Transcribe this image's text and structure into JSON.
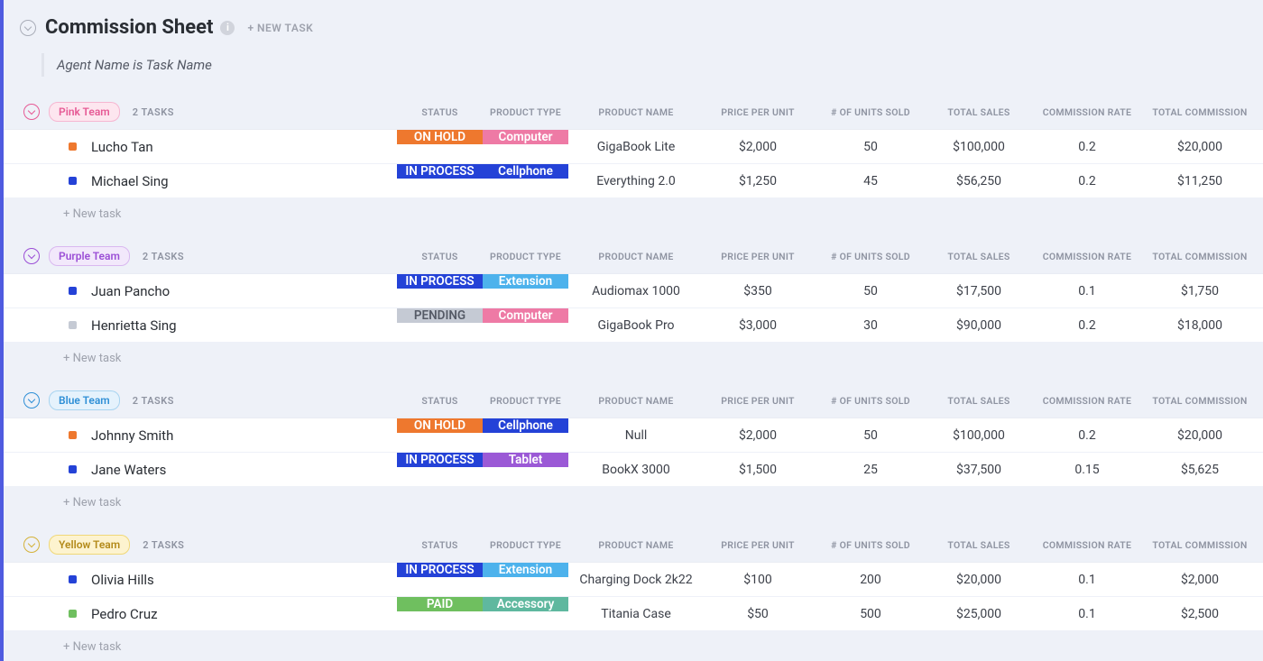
{
  "header": {
    "title": "Commission Sheet",
    "new_task_label": "+ NEW TASK",
    "subtitle": "Agent Name is Task Name"
  },
  "columns": {
    "status": "STATUS",
    "product_type": "PRODUCT TYPE",
    "product_name": "PRODUCT NAME",
    "price_per_unit": "PRICE PER UNIT",
    "units_sold": "# OF UNITS SOLD",
    "total_sales": "TOTAL SALES",
    "commission_rate": "COMMISSION RATE",
    "total_commission": "TOTAL COMMISSION"
  },
  "labels": {
    "new_task": "+ New task"
  },
  "status_styles": {
    "ON HOLD": {
      "bg": "#ee782e"
    },
    "IN PROCESS": {
      "bg": "#2442d7"
    },
    "PENDING": {
      "bg": "#c5cad4",
      "fg": "#555a66"
    },
    "PAID": {
      "bg": "#6fbf5f"
    }
  },
  "ptype_styles": {
    "Computer": {
      "bg": "#ee7aa5"
    },
    "Cellphone": {
      "bg": "#2442d7"
    },
    "Extension": {
      "bg": "#4db2ec"
    },
    "Tablet": {
      "bg": "#9b59d6"
    },
    "Accessory": {
      "bg": "#5fb89f"
    }
  },
  "bullet_colors": {
    "orange": "#ee782e",
    "blue": "#2442d7",
    "grey": "#c5cad4",
    "green": "#6fbf5f"
  },
  "groups": [
    {
      "name": "Pink Team",
      "task_count": "2 TASKS",
      "pill": {
        "bg": "#fde6ef",
        "fg": "#e65a95",
        "border": "#f6b6d1"
      },
      "chev_color": "#e65a95",
      "rows": [
        {
          "bullet": "orange",
          "agent": "Lucho Tan",
          "status": "ON HOLD",
          "ptype": "Computer",
          "pname": "GigaBook Lite",
          "ppu": "$2,000",
          "units": "50",
          "tsales": "$100,000",
          "crate": "0.2",
          "tcomm": "$20,000"
        },
        {
          "bullet": "blue",
          "agent": "Michael Sing",
          "status": "IN PROCESS",
          "ptype": "Cellphone",
          "pname": "Everything 2.0",
          "ppu": "$1,250",
          "units": "45",
          "tsales": "$56,250",
          "crate": "0.2",
          "tcomm": "$11,250"
        }
      ]
    },
    {
      "name": "Purple Team",
      "task_count": "2 TASKS",
      "pill": {
        "bg": "#f2e8fb",
        "fg": "#9b4ed6",
        "border": "#d9b8f0"
      },
      "chev_color": "#9b4ed6",
      "rows": [
        {
          "bullet": "blue",
          "agent": "Juan Pancho",
          "status": "IN PROCESS",
          "ptype": "Extension",
          "pname": "Audiomax 1000",
          "ppu": "$350",
          "units": "50",
          "tsales": "$17,500",
          "crate": "0.1",
          "tcomm": "$1,750"
        },
        {
          "bullet": "grey",
          "agent": "Henrietta Sing",
          "status": "PENDING",
          "ptype": "Computer",
          "pname": "GigaBook Pro",
          "ppu": "$3,000",
          "units": "30",
          "tsales": "$90,000",
          "crate": "0.2",
          "tcomm": "$18,000"
        }
      ]
    },
    {
      "name": "Blue Team",
      "task_count": "2 TASKS",
      "pill": {
        "bg": "#e5f2fc",
        "fg": "#2f8fd6",
        "border": "#a8d4f0"
      },
      "chev_color": "#2f8fd6",
      "rows": [
        {
          "bullet": "orange",
          "agent": "Johnny Smith",
          "status": "ON HOLD",
          "ptype": "Cellphone",
          "pname": "Null",
          "ppu": "$2,000",
          "units": "50",
          "tsales": "$100,000",
          "crate": "0.2",
          "tcomm": "$20,000"
        },
        {
          "bullet": "blue",
          "agent": "Jane Waters",
          "status": "IN PROCESS",
          "ptype": "Tablet",
          "pname": "BookX 3000",
          "ppu": "$1,500",
          "units": "25",
          "tsales": "$37,500",
          "crate": "0.15",
          "tcomm": "$5,625"
        }
      ]
    },
    {
      "name": "Yellow Team",
      "task_count": "2 TASKS",
      "pill": {
        "bg": "#fdf3cf",
        "fg": "#b38a1a",
        "border": "#f0d878"
      },
      "chev_color": "#d4b23a",
      "rows": [
        {
          "bullet": "blue",
          "agent": "Olivia Hills",
          "status": "IN PROCESS",
          "ptype": "Extension",
          "pname": "Charging Dock 2k22",
          "ppu": "$100",
          "units": "200",
          "tsales": "$20,000",
          "crate": "0.1",
          "tcomm": "$2,000"
        },
        {
          "bullet": "green",
          "agent": "Pedro Cruz",
          "status": "PAID",
          "ptype": "Accessory",
          "pname": "Titania Case",
          "ppu": "$50",
          "units": "500",
          "tsales": "$25,000",
          "crate": "0.1",
          "tcomm": "$2,500"
        }
      ]
    }
  ]
}
